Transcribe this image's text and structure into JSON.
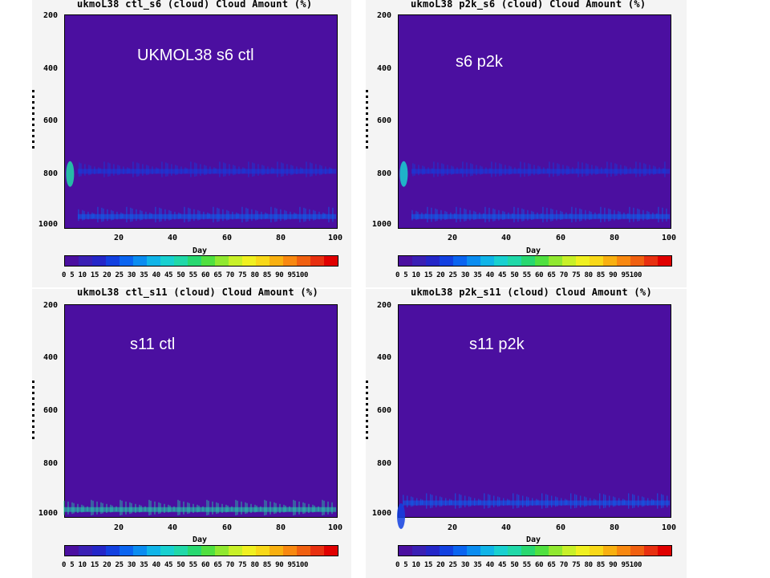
{
  "colorbar": {
    "labels_text": "0 5 10 15 20 25 30 35 40 45 50 55 60 65 70 75 80 85 90 95100",
    "colors": [
      "#4b0fa0",
      "#3a1fb4",
      "#2426c8",
      "#1240e0",
      "#0a64f0",
      "#0a8cf0",
      "#10b4e8",
      "#18d0d0",
      "#20d8a8",
      "#28d870",
      "#50e040",
      "#90e830",
      "#c8f028",
      "#f0f020",
      "#f8d818",
      "#f8b010",
      "#f88810",
      "#f06010",
      "#e83010",
      "#e00000"
    ]
  },
  "panels": [
    {
      "title": "ukmoL38 ctl_s6  (cloud)  Cloud Amount (%)",
      "annotation": "UKMOL38 s6 ctl",
      "xlabel": "Day",
      "xticks": [
        "20",
        "40",
        "60",
        "80",
        "100"
      ],
      "yticks": [
        "200",
        "400",
        "600",
        "800",
        "1000"
      ]
    },
    {
      "title": "ukmoL38 p2k_s6  (cloud)  Cloud Amount (%)",
      "annotation": "s6 p2k",
      "xlabel": "Day",
      "xticks": [
        "20",
        "40",
        "60",
        "80",
        "100"
      ],
      "yticks": [
        "200",
        "400",
        "600",
        "800",
        "1000"
      ]
    },
    {
      "title": "ukmoL38 ctl_s11  (cloud)  Cloud Amount (%)",
      "annotation": "s11 ctl",
      "xlabel": "Day",
      "xticks": [
        "20",
        "40",
        "60",
        "80",
        "100"
      ],
      "yticks": [
        "200",
        "400",
        "600",
        "800",
        "1000"
      ]
    },
    {
      "title": "ukmoL38 p2k_s11  (cloud)  Cloud Amount (%)",
      "annotation": "s11 p2k",
      "xlabel": "Day",
      "xticks": [
        "20",
        "40",
        "60",
        "80",
        "100"
      ],
      "yticks": [
        "200",
        "400",
        "600",
        "800",
        "1000"
      ]
    }
  ],
  "chart_data": [
    {
      "type": "heatmap",
      "title": "ukmoL38 ctl_s6  (cloud)  Cloud Amount (%)",
      "xlabel": "Day",
      "xlim": [
        0,
        100
      ],
      "ylim": [
        1000,
        200
      ],
      "colorbar_range": [
        0,
        100
      ],
      "features": [
        {
          "kind": "blob",
          "x": 1,
          "y": 800,
          "value": 40
        },
        {
          "kind": "band",
          "x_range": [
            5,
            100
          ],
          "y": 790,
          "value": 15
        },
        {
          "kind": "band",
          "x_range": [
            5,
            100
          ],
          "y": 960,
          "value": 20
        }
      ]
    },
    {
      "type": "heatmap",
      "title": "ukmoL38 p2k_s6  (cloud)  Cloud Amount (%)",
      "xlabel": "Day",
      "xlim": [
        0,
        100
      ],
      "ylim": [
        1000,
        200
      ],
      "colorbar_range": [
        0,
        100
      ],
      "features": [
        {
          "kind": "blob",
          "x": 1,
          "y": 800,
          "value": 35
        },
        {
          "kind": "band",
          "x_range": [
            5,
            100
          ],
          "y": 790,
          "value": 15
        },
        {
          "kind": "band",
          "x_range": [
            5,
            100
          ],
          "y": 960,
          "value": 20
        }
      ]
    },
    {
      "type": "heatmap",
      "title": "ukmoL38 ctl_s11  (cloud)  Cloud Amount (%)",
      "xlabel": "Day",
      "xlim": [
        0,
        100
      ],
      "ylim": [
        1000,
        200
      ],
      "colorbar_range": [
        0,
        100
      ],
      "features": [
        {
          "kind": "band",
          "x_range": [
            0,
            100
          ],
          "y": 975,
          "value": 40
        }
      ]
    },
    {
      "type": "heatmap",
      "title": "ukmoL38 p2k_s11  (cloud)  Cloud Amount (%)",
      "xlabel": "Day",
      "xlim": [
        0,
        100
      ],
      "ylim": [
        1000,
        200
      ],
      "colorbar_range": [
        0,
        100
      ],
      "features": [
        {
          "kind": "band",
          "x_range": [
            2,
            100
          ],
          "y": 950,
          "value": 20
        },
        {
          "kind": "blob",
          "x": 0,
          "y": 1000,
          "value": 15
        }
      ]
    }
  ]
}
